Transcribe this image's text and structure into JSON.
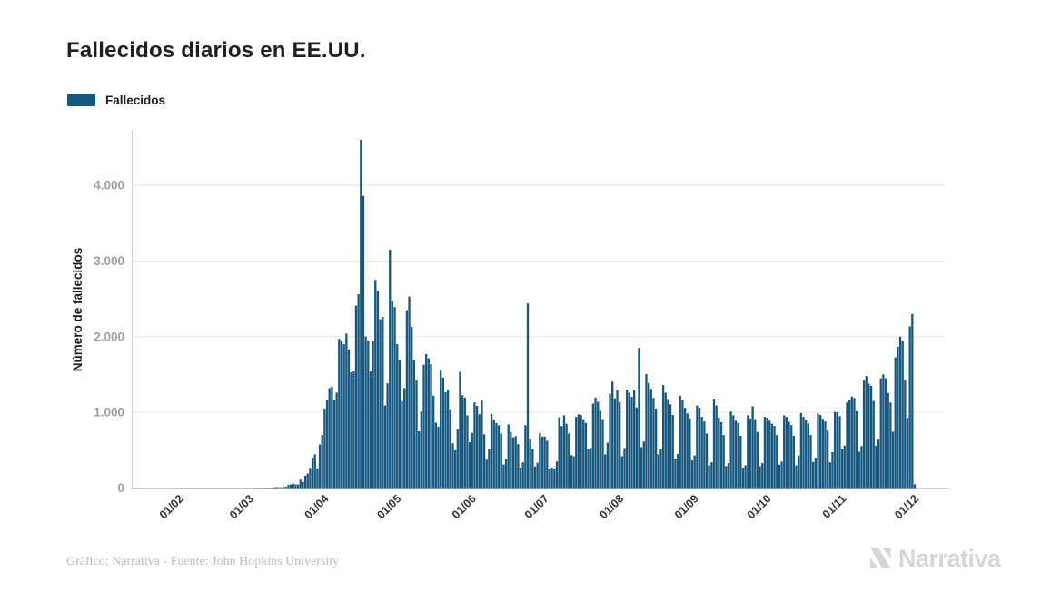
{
  "header": {
    "title": "Fallecidos diarios en EE.UU."
  },
  "legend": {
    "label": "Fallecidos",
    "color": "#15577E"
  },
  "chart_data": {
    "type": "bar",
    "title": "Fallecidos diarios en EE.UU.",
    "xlabel": "",
    "ylabel": "Número de fallecidos",
    "series_name": "Fallecidos",
    "bar_color": "#15577E",
    "grid": true,
    "legend_position": "top-left",
    "ylim": [
      0,
      4800
    ],
    "y_tick_values": [
      0,
      1000,
      2000,
      3000,
      4000
    ],
    "y_tick_labels": [
      "0",
      "1.000",
      "2.000",
      "3.000",
      "4.000"
    ],
    "x_tick_labels": [
      "01/02",
      "01/03",
      "01/04",
      "01/05",
      "01/06",
      "01/07",
      "01/08",
      "01/09",
      "01/10",
      "01/11",
      "01/12"
    ],
    "x_tick_day_offsets": [
      10,
      39,
      70,
      100,
      131,
      161,
      192,
      223,
      253,
      284,
      314
    ],
    "values": [
      0,
      0,
      0,
      0,
      0,
      0,
      0,
      0,
      0,
      0,
      1,
      1,
      1,
      1,
      1,
      1,
      1,
      1,
      1,
      1,
      1,
      1,
      1,
      1,
      1,
      1,
      1,
      1,
      1,
      1,
      1,
      1,
      1,
      1,
      1,
      1,
      1,
      1,
      1,
      1,
      1,
      4,
      3,
      3,
      2,
      4,
      4,
      6,
      4,
      8,
      13,
      9,
      11,
      13,
      18,
      41,
      47,
      57,
      49,
      46,
      111,
      80,
      164,
      190,
      267,
      400,
      445,
      260,
      575,
      700,
      1050,
      1170,
      1320,
      1340,
      1170,
      1260,
      1970,
      1940,
      1900,
      2040,
      1830,
      1530,
      1540,
      2410,
      2560,
      4600,
      3860,
      2000,
      1950,
      1540,
      1940,
      2750,
      2610,
      2230,
      2260,
      1090,
      1385,
      3150,
      2470,
      2390,
      1900,
      1690,
      1150,
      1320,
      2350,
      2530,
      2130,
      1690,
      1420,
      750,
      1010,
      1630,
      1770,
      1715,
      1635,
      1220,
      865,
      810,
      1550,
      1460,
      1265,
      1295,
      1040,
      590,
      500,
      775,
      1535,
      1225,
      1195,
      960,
      605,
      730,
      1130,
      1085,
      975,
      1155,
      710,
      375,
      510,
      980,
      905,
      860,
      830,
      720,
      310,
      380,
      840,
      740,
      670,
      685,
      580,
      270,
      340,
      830,
      2440,
      650,
      520,
      285,
      335,
      725,
      680,
      680,
      625,
      250,
      270,
      255,
      350,
      935,
      820,
      960,
      850,
      720,
      435,
      420,
      940,
      975,
      965,
      910,
      860,
      515,
      530,
      1115,
      1195,
      1140,
      1020,
      910,
      445,
      600,
      1245,
      1405,
      1185,
      1290,
      1135,
      420,
      530,
      1300,
      1260,
      1205,
      1290,
      1065,
      1850,
      540,
      615,
      1505,
      1390,
      1310,
      1190,
      1050,
      445,
      510,
      1360,
      1260,
      1175,
      1105,
      965,
      390,
      450,
      1220,
      1170,
      1060,
      985,
      920,
      365,
      430,
      1090,
      1060,
      940,
      880,
      720,
      300,
      340,
      1180,
      1090,
      930,
      870,
      700,
      290,
      330,
      1010,
      960,
      890,
      860,
      690,
      270,
      300,
      960,
      920,
      1080,
      910,
      740,
      290,
      330,
      940,
      930,
      890,
      850,
      820,
      700,
      310,
      350,
      960,
      940,
      875,
      830,
      690,
      300,
      430,
      990,
      940,
      900,
      855,
      700,
      345,
      400,
      985,
      965,
      915,
      880,
      760,
      340,
      475,
      1005,
      1000,
      950,
      510,
      560,
      1130,
      1170,
      1210,
      1190,
      1015,
      480,
      555,
      1420,
      1480,
      1380,
      1350,
      1150,
      560,
      640,
      1450,
      1500,
      1450,
      1255,
      1130,
      745,
      1725,
      1865,
      2000,
      1945,
      1425,
      925,
      2135,
      2300,
      50
    ]
  },
  "footer": {
    "credit": "Gráfico: Narrativa - Fuente: John Hopkins University"
  },
  "branding": {
    "logo_text": "Narrativa"
  }
}
